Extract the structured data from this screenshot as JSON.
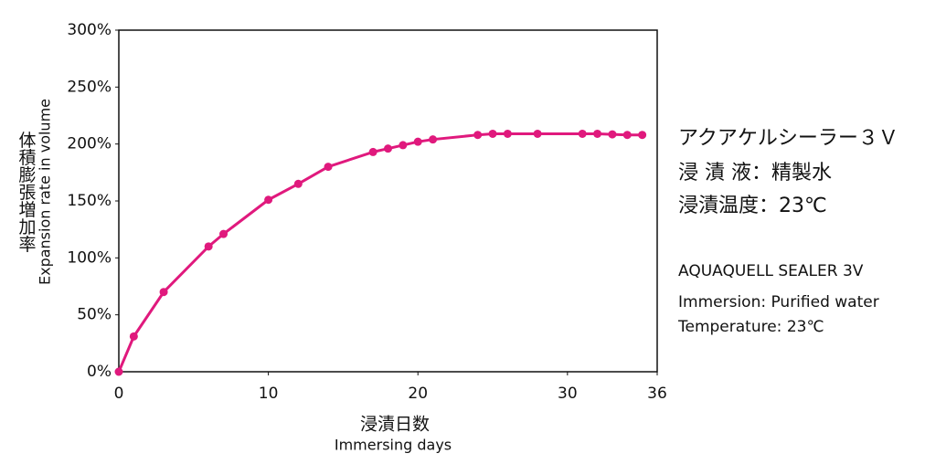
{
  "chart_data": {
    "type": "line",
    "y_label": [
      "体積膨張増加率",
      "Expansion rate in volume"
    ],
    "x_label": [
      "浸漬日数",
      "Immersing days"
    ],
    "x": [
      0,
      1,
      3,
      6,
      7,
      10,
      12,
      14,
      17,
      18,
      19,
      20,
      21,
      24,
      25,
      26,
      28,
      31,
      32,
      33,
      34,
      35
    ],
    "series": [
      {
        "color": "#e0197d",
        "values": [
          0,
          31,
          70,
          110,
          121,
          151,
          165,
          180,
          193,
          196,
          199,
          202,
          204,
          208,
          209,
          209,
          209,
          209,
          209,
          208.5,
          208,
          208
        ]
      }
    ],
    "xlim": [
      0,
      36
    ],
    "xticks": [
      0,
      10,
      20,
      30,
      36
    ],
    "ylim": [
      0,
      300
    ],
    "yticks": [
      {
        "value": 0,
        "label": "0%"
      },
      {
        "value": 50,
        "label": "50%"
      },
      {
        "value": 100,
        "label": "100%"
      },
      {
        "value": 150,
        "label": "150%"
      },
      {
        "value": 200,
        "label": "200%"
      },
      {
        "value": 250,
        "label": "250%"
      },
      {
        "value": 300,
        "label": "300%"
      }
    ],
    "grid": false,
    "annotations": [
      "アクアケルシーラー３Ｖ",
      "浸 漬 液：精製水",
      "浸漬温度：23℃",
      "AQUAQUELL SEALER 3V",
      "Immersion: Purified water",
      "Temperature: 23℃"
    ]
  }
}
